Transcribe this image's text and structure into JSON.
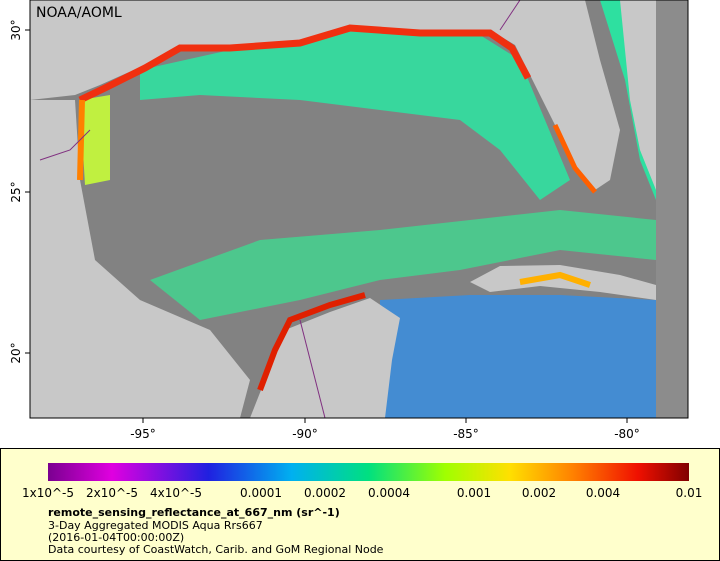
{
  "map": {
    "credit": "NOAA/AOML",
    "lat_labels": [
      "30°",
      "25°",
      "20°"
    ],
    "lon_labels": [
      "-95°",
      "-90°",
      "-85°",
      "-80°"
    ]
  },
  "legend": {
    "ticks": [
      "1x10^-5",
      "2x10^-5",
      "4x10^-5",
      "0.0001",
      "0.0002",
      "0.0004",
      "0.001",
      "0.002",
      "0.004",
      "0.01"
    ],
    "title": "remote_sensing_reflectance_at_667_nm (sr^-1)",
    "lines": [
      "3-Day Aggregated MODIS Aqua Rrs667",
      "(2016-01-04T00:00:00Z)",
      "Data courtesy of CoastWatch, Carib. and GoM Regional Node"
    ]
  }
}
